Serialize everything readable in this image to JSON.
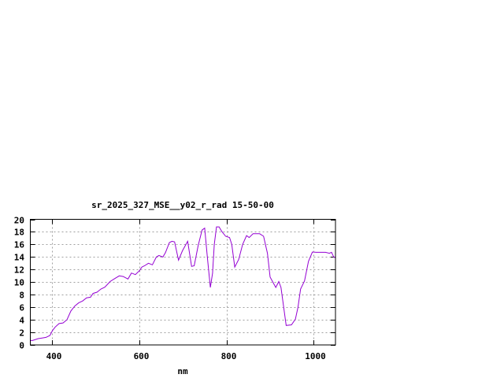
{
  "chart_data": {
    "type": "line",
    "title": "sr_2025_327_MSE__y02_r_rad 15-50-00",
    "xlabel": "nm",
    "ylabel": "",
    "xlim": [
      350,
      1050
    ],
    "ylim": [
      0,
      20
    ],
    "xticks": [
      400,
      600,
      800,
      1000
    ],
    "yticks": [
      0,
      2,
      4,
      6,
      8,
      10,
      12,
      14,
      16,
      18,
      20
    ],
    "grid": true,
    "legend": "none",
    "line_color": "#9400d3",
    "series": [
      {
        "x": [
          350,
          355,
          368,
          377,
          386,
          395,
          401,
          407,
          416,
          425,
          434,
          443,
          452,
          461,
          470,
          479,
          488,
          494,
          503,
          512,
          521,
          533,
          542,
          554,
          563,
          574,
          582,
          591,
          600,
          606,
          612,
          621,
          630,
          639,
          645,
          654,
          660,
          669,
          675,
          681,
          690,
          699,
          711,
          720,
          726,
          735,
          744,
          750,
          756,
          763,
          768,
          772,
          777,
          783,
          789,
          798,
          807,
          812,
          819,
          828,
          837,
          846,
          852,
          861,
          876,
          885,
          894,
          900,
          913,
          920,
          925,
          937,
          949,
          958,
          964,
          970,
          979,
          988,
          997,
          1006,
          1027,
          1036,
          1041,
          1046,
          1050
        ],
        "y": [
          0.7,
          0.7,
          1.0,
          1.1,
          1.2,
          1.5,
          2.3,
          2.85,
          3.4,
          3.5,
          4.0,
          5.4,
          6.2,
          6.7,
          7.0,
          7.5,
          7.6,
          8.2,
          8.4,
          8.9,
          9.2,
          10.1,
          10.5,
          11.0,
          10.9,
          10.5,
          11.45,
          11.2,
          11.8,
          12.4,
          12.6,
          13.0,
          12.75,
          14.0,
          14.25,
          14.0,
          14.7,
          16.3,
          16.5,
          16.4,
          13.5,
          15.0,
          16.5,
          12.5,
          12.6,
          15.8,
          18.3,
          18.6,
          14.0,
          9.15,
          11.4,
          16.0,
          18.8,
          18.8,
          18.1,
          17.3,
          17.1,
          16.0,
          12.4,
          13.6,
          16.0,
          17.4,
          17.1,
          17.7,
          17.7,
          17.3,
          14.6,
          10.8,
          9.15,
          10.1,
          9.15,
          3.1,
          3.2,
          4.1,
          6.0,
          8.9,
          10.2,
          13.3,
          14.8,
          14.75,
          14.75,
          14.6,
          14.75,
          14.0,
          13.9
        ]
      }
    ]
  }
}
